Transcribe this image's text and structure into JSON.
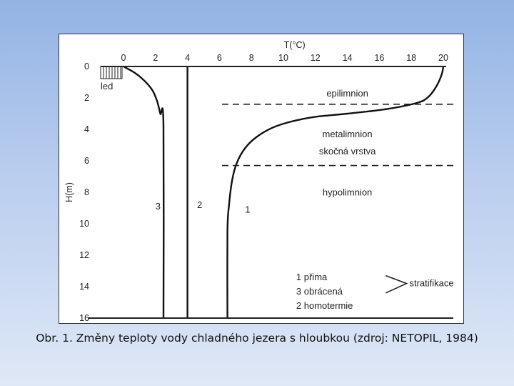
{
  "caption": "Obr. 1. Změny teploty vody chladného jezera s hloubkou (zdroj: NETOPIL, 1984)",
  "chart_data": {
    "type": "line",
    "xlabel": "T(°C)",
    "ylabel": "H(m)",
    "xlim": [
      0,
      20
    ],
    "ylim": [
      0,
      16
    ],
    "x_ticks": [
      "0",
      "2",
      "4",
      "6",
      "8",
      "10",
      "12",
      "14",
      "16",
      "18",
      "20"
    ],
    "y_ticks": [
      "0",
      "2",
      "4",
      "6",
      "8",
      "10",
      "12",
      "14",
      "16"
    ],
    "ice_label": "led",
    "series": [
      {
        "name": "1",
        "label": "1",
        "points": [
          [
            20,
            0
          ],
          [
            19.9,
            0.5
          ],
          [
            19.6,
            1.2
          ],
          [
            19.1,
            1.9
          ],
          [
            18.4,
            2.3
          ],
          [
            16.5,
            2.7
          ],
          [
            14,
            3.0
          ],
          [
            12,
            3.2
          ],
          [
            10.5,
            3.5
          ],
          [
            9.3,
            3.9
          ],
          [
            8.3,
            4.5
          ],
          [
            7.6,
            5.2
          ],
          [
            7.1,
            6.1
          ],
          [
            6.8,
            7.2
          ],
          [
            6.6,
            8.8
          ],
          [
            6.5,
            10.5
          ],
          [
            6.5,
            16
          ]
        ]
      },
      {
        "name": "2",
        "label": "2",
        "points": [
          [
            4,
            0
          ],
          [
            4,
            16
          ]
        ]
      },
      {
        "name": "3",
        "label": "3",
        "points": [
          [
            0,
            0
          ],
          [
            0.7,
            0.4
          ],
          [
            1.3,
            0.9
          ],
          [
            1.8,
            1.5
          ],
          [
            2.1,
            2.2
          ],
          [
            2.3,
            3.0
          ],
          [
            2.5,
            3.8
          ],
          [
            2.5,
            16
          ]
        ]
      }
    ],
    "boundaries": [
      {
        "depth": 2.4
      },
      {
        "depth": 6.3
      }
    ],
    "zone_labels": [
      "epilimnion",
      "metalimnion",
      "skočná vrstva",
      "hypolimnion"
    ],
    "legend": {
      "items": [
        "1 přima",
        "3 obrácená",
        "2 homotermie"
      ],
      "group_label": "stratifikace"
    }
  }
}
